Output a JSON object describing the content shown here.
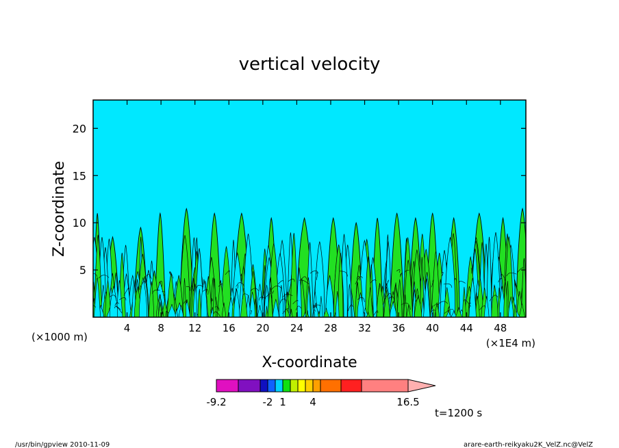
{
  "chart_data": {
    "type": "contour",
    "title": "vertical velocity",
    "xlabel": "X-coordinate",
    "ylabel": "Z-coordinate",
    "x_unit_left": "(×1000 m)",
    "x_unit_right": "(×1E4 m)",
    "xlim": [
      0,
      51
    ],
    "ylim": [
      0,
      23
    ],
    "x_ticks": [
      4,
      8,
      12,
      16,
      20,
      24,
      28,
      32,
      36,
      40,
      44,
      48
    ],
    "y_ticks": [
      5,
      10,
      15,
      20
    ],
    "field": {
      "background_color": "#00e8ff",
      "updraft_color": "#22e022",
      "downdraft_color": "#00e8ff",
      "plume_top_range": [
        3,
        11.5
      ],
      "plume_peak_x": [
        0.5,
        2.3,
        5.6,
        7.9,
        11.0,
        14.3,
        17.5,
        21.0,
        24.9,
        28.3,
        31.0,
        33.5,
        35.8,
        38.0,
        40.0,
        42.5,
        45.5,
        48.3,
        50.6
      ],
      "plume_peak_z": [
        11.0,
        8.5,
        9.5,
        11.0,
        11.5,
        11.0,
        11.0,
        10.5,
        10.5,
        10.5,
        10.0,
        10.5,
        11.0,
        10.5,
        11.0,
        10.5,
        11.0,
        10.5,
        11.5
      ]
    },
    "colorbar": {
      "colors": [
        "#e010c0",
        "#8010c0",
        "#1010c0",
        "#1060ff",
        "#00d0ff",
        "#10e010",
        "#c0f000",
        "#ffff00",
        "#ffd000",
        "#ffa000",
        "#ff7000",
        "#ff2020",
        "#ff8080",
        "#ffb0b0"
      ],
      "tick_labels": [
        "-9.2",
        "-2",
        "1",
        "4",
        "16.5"
      ]
    },
    "time_label": "t=1200 s"
  },
  "footer": {
    "left": "/usr/bin/gpview   2010-11-09",
    "right": "arare-earth-reikyaku2K_VelZ.nc@VelZ"
  }
}
